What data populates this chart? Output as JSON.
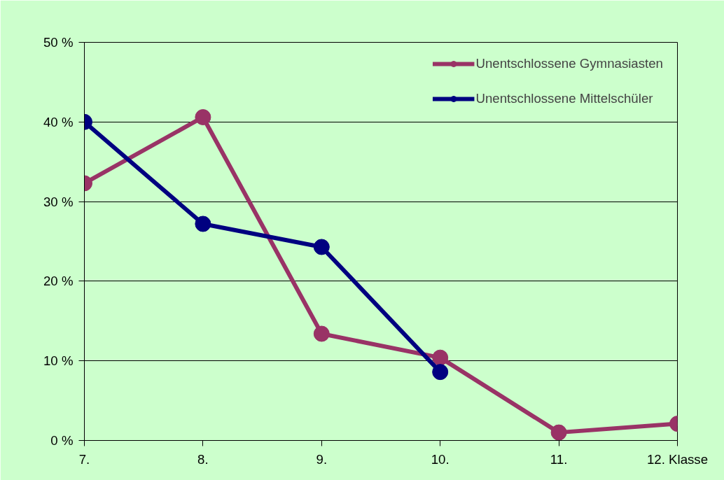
{
  "chart_data": {
    "type": "line",
    "categories": [
      "7.",
      "8.",
      "9.",
      "10.",
      "11.",
      "12. Klasse"
    ],
    "series": [
      {
        "name": "Unentschlossene Gymnasiasten",
        "color": "#993366",
        "values": [
          32.3,
          40.6,
          13.4,
          10.4,
          1.0,
          2.1
        ]
      },
      {
        "name": "Unentschlossene Mittelschüler",
        "color": "#000080",
        "values": [
          40.0,
          27.2,
          24.3,
          8.6,
          null,
          null
        ]
      }
    ],
    "ylim": [
      0,
      50
    ],
    "yticks": [
      {
        "value": 0,
        "label": "0 %"
      },
      {
        "value": 10,
        "label": "10 %"
      },
      {
        "value": 20,
        "label": "20 %"
      },
      {
        "value": 30,
        "label": "30 %"
      },
      {
        "value": 40,
        "label": "40 %"
      },
      {
        "value": 50,
        "label": "50 %"
      }
    ],
    "grid": "y",
    "legend": "top right",
    "marker": "circle",
    "line_style": "solid"
  }
}
